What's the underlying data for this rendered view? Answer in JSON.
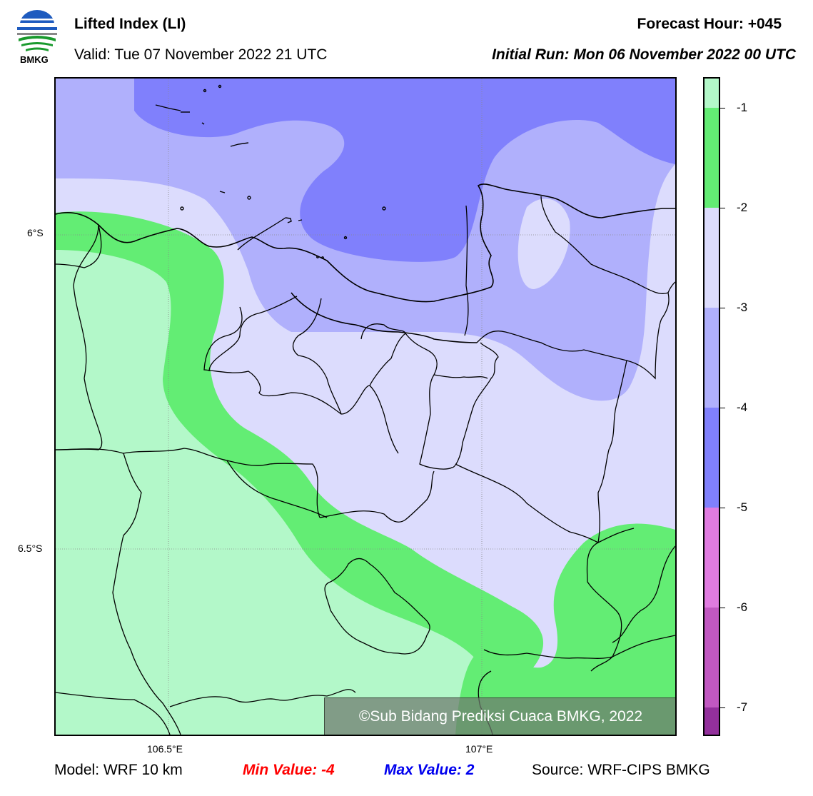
{
  "header": {
    "logo_text": "BMKG",
    "title": "Lifted Index (LI)",
    "valid": "Valid: Tue 07 November 2022 21 UTC",
    "forecast_hour": "Forecast Hour: +045",
    "initial_run": "Initial Run: Mon 06 November 2022 00 UTC"
  },
  "map": {
    "lat_labels": [
      "6°S",
      "6.5°S"
    ],
    "lon_labels": [
      "106.5°E",
      "107°E"
    ],
    "copyright": "©Sub Bidang Prediksi Cuaca BMKG, 2022",
    "colors": {
      "band_above_-1": "#b3f8c9",
      "band_-2_to_-1": "#63ed74",
      "band_-3_to_-2": "#dcdcfd",
      "band_-4_to_-3": "#b0b0fc",
      "band_-5_to_-4": "#8080fc",
      "coastline": "#000000"
    }
  },
  "colorbar": {
    "ticks": [
      "-1",
      "-2",
      "-3",
      "-4",
      "-5",
      "-6",
      "-7"
    ],
    "colors": [
      "#b3f8c9",
      "#63ed74",
      "#dcdcfd",
      "#b0b0fc",
      "#8080fc",
      "#e07be0",
      "#c158c1",
      "#93309c"
    ]
  },
  "footer": {
    "model": "Model: WRF 10 km",
    "min_value": "Min Value: -4",
    "max_value": "Max Value: 2",
    "source": "Source: WRF-CIPS BMKG"
  }
}
